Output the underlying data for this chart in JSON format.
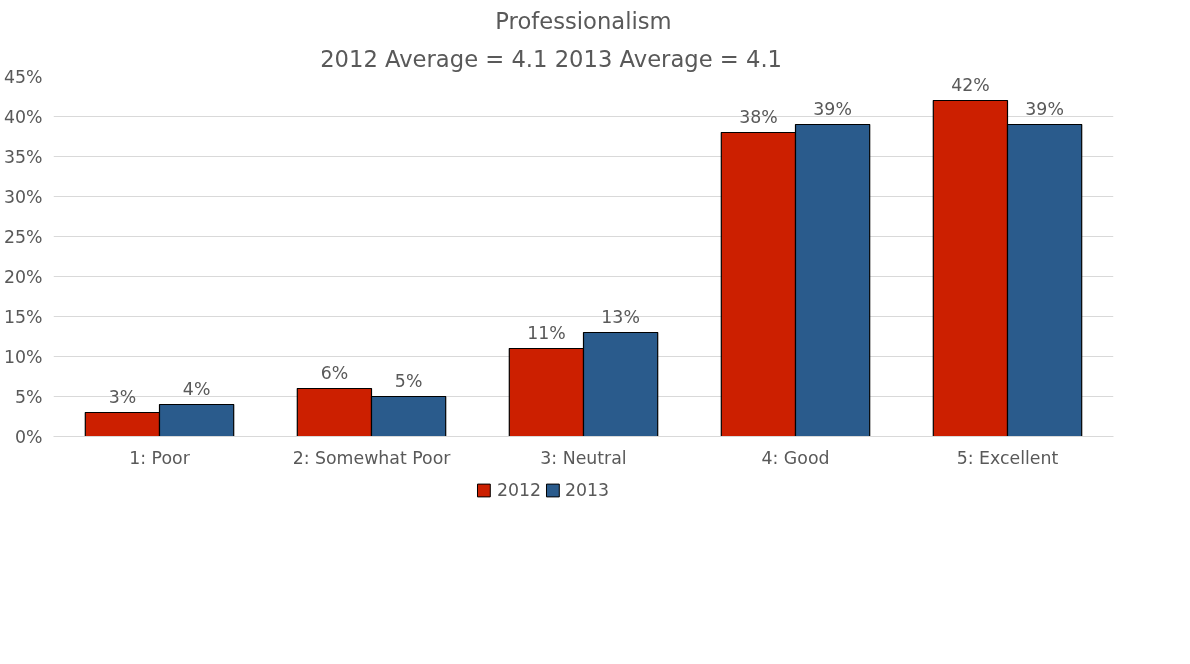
{
  "chart_data": {
    "type": "bar",
    "title": "Professionalism",
    "subtitle": "2012 Average = 4.1          2013 Average = 4.1",
    "categories": [
      "1: Poor",
      "2: Somewhat Poor",
      "3: Neutral",
      "4: Good",
      "5: Excellent"
    ],
    "series": [
      {
        "name": "2012",
        "color": "#cc1f00",
        "values": [
          3,
          6,
          11,
          38,
          42
        ],
        "value_labels": [
          "3%",
          "6%",
          "11%",
          "38%",
          "42%"
        ]
      },
      {
        "name": "2013",
        "color": "#2a5b8c",
        "values": [
          4,
          5,
          13,
          39,
          39
        ],
        "value_labels": [
          "4%",
          "5%",
          "13%",
          "39%",
          "39%"
        ]
      }
    ],
    "ylim": [
      0,
      45
    ],
    "yticks": [
      {
        "value": 0,
        "label": "0%"
      },
      {
        "value": 5,
        "label": "5%"
      },
      {
        "value": 10,
        "label": "10%"
      },
      {
        "value": 15,
        "label": "15%"
      },
      {
        "value": 20,
        "label": "20%"
      },
      {
        "value": 25,
        "label": "25%"
      },
      {
        "value": 30,
        "label": "30%"
      },
      {
        "value": 35,
        "label": "35%"
      },
      {
        "value": 40,
        "label": "40%"
      },
      {
        "value": 45,
        "label": "45%"
      }
    ],
    "grid": "y",
    "legend": "bottom"
  }
}
